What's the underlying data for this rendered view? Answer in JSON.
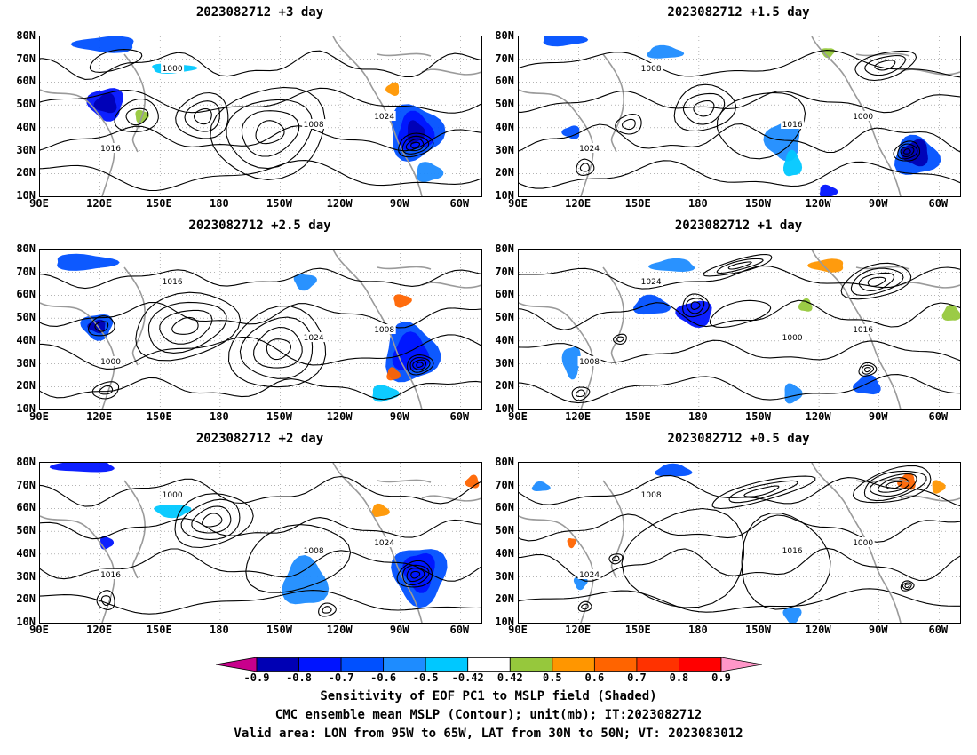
{
  "panels": [
    {
      "title": "2023082712  +3 day"
    },
    {
      "title": "2023082712  +1.5 day"
    },
    {
      "title": "2023082712  +2.5 day"
    },
    {
      "title": "2023082712  +1 day"
    },
    {
      "title": "2023082712  +2 day"
    },
    {
      "title": "2023082712  +0.5 day"
    }
  ],
  "lat_labels": [
    "80N",
    "70N",
    "60N",
    "50N",
    "40N",
    "30N",
    "20N",
    "10N"
  ],
  "lon_labels": [
    "90E",
    "120E",
    "150E",
    "180",
    "150W",
    "120W",
    "90W",
    "60W"
  ],
  "contour_labels": [
    "1000",
    "1008",
    "1016",
    "1024"
  ],
  "colorbar": {
    "ticks": [
      "-0.9",
      "-0.8",
      "-0.7",
      "-0.6",
      "-0.5",
      "-0.42",
      "0.42",
      "0.5",
      "0.6",
      "0.7",
      "0.8",
      "0.9"
    ],
    "colors": [
      "#c8008c",
      "#0000b4",
      "#0014ff",
      "#0050ff",
      "#1e8cff",
      "#00c8ff",
      "#ffffff",
      "#96c83c",
      "#ff9600",
      "#ff6400",
      "#ff3200",
      "#ff0000",
      "#ff96c8"
    ]
  },
  "caption": {
    "line1": "Sensitivity of EOF PC1 to MSLP field (Shaded)",
    "line2": "CMC ensemble mean MSLP (Contour); unit(mb); IT:2023082712",
    "line3": "Valid area: LON from 95W to 65W, LAT from 30N to 50N; VT: 2023083012"
  }
}
